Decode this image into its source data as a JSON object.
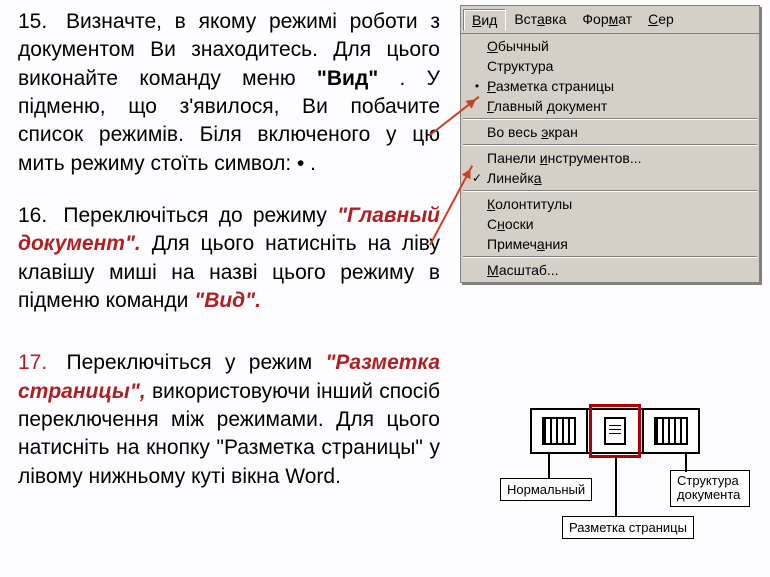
{
  "items": {
    "n15": {
      "num": "15.",
      "t1": "Визначте, в якому режимі роботи з документом Ви знаходитесь. Для цього виконайте команду меню ",
      "quote": "\"Вид\"",
      "t2": ". У підменю, що з'явилося, Ви побачите список режимів. Біля включеного у цю мить режиму стоїть символ: • ."
    },
    "n16": {
      "num": "16.",
      "t1": "Переключіться до режиму ",
      "quote1": "\"Главный документ\".",
      "t2": " Для цього натисніть на ліву клавішу миші на назві цього режиму в підменю команди ",
      "quote2": "\"Вид\"."
    },
    "n17": {
      "num": "17.",
      "t1": "Переключіться у режим ",
      "quote": "\"Разметка страницы\",",
      "t2": " використовуючи інший спосіб переключення між режимами. Для цього натисніть на кнопку \"Разметка страницы\" у лівому нижньому куті вікна Word."
    }
  },
  "menu": {
    "bar": [
      "Вид",
      "Вставка",
      "Формат",
      "Сер"
    ],
    "bar_underline_idx": [
      0,
      3,
      3,
      0
    ],
    "active_item": "Разметка страницы",
    "groups": [
      [
        "Обычный",
        "Структура",
        "Разметка страницы",
        "Главный документ"
      ],
      [
        "Во весь экран"
      ],
      [
        "Панели инструментов...",
        "Линейка"
      ],
      [
        "Колонтитулы",
        "Сноски",
        "Примечания"
      ],
      [
        "Масштаб..."
      ]
    ],
    "underline_char": {
      "Обычный": 0,
      "Структура": 9,
      "Разметка страницы": 0,
      "Главный документ": 0,
      "Во весь экран": 8,
      "Панели инструментов...": 7,
      "Линейка": 6,
      "Колонтитулы": 0,
      "Сноски": 1,
      "Примечания": 6,
      "Масштаб...": 0
    },
    "check_items": [
      "Линейка"
    ]
  },
  "fig": {
    "labels": [
      "Нормальный",
      "Структура документа",
      "Разметка страницы"
    ]
  },
  "colors": {
    "accent_red": "#b02020",
    "arrow": "#d04020",
    "menu_bg": "#d4d0c8"
  }
}
